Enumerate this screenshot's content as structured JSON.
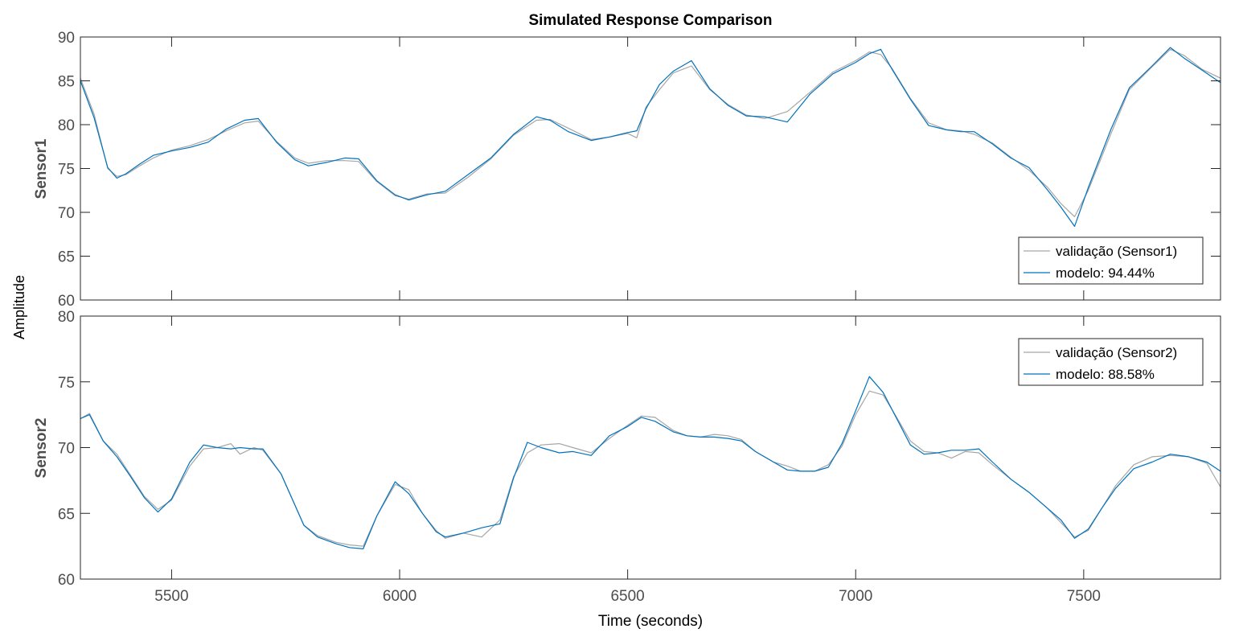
{
  "figure": {
    "title": "Simulated Response Comparison",
    "xlabel": "Time (seconds)",
    "shared_ylabel": "Amplitude"
  },
  "chart_data": [
    {
      "type": "line",
      "title": "Simulated Response Comparison",
      "xlabel": "Time (seconds)",
      "ylabel": "Sensor1",
      "xlim": [
        5300,
        7800
      ],
      "ylim": [
        60,
        90
      ],
      "xticks": [
        5500,
        6000,
        6500,
        7000,
        7500
      ],
      "yticks": [
        60,
        65,
        70,
        75,
        80,
        85,
        90
      ],
      "grid": false,
      "legend_position": "bottom-right",
      "series": [
        {
          "name": "validação (Sensor1)",
          "color": "#a6a6a6",
          "x": [
            5300,
            5330,
            5360,
            5380,
            5400,
            5430,
            5460,
            5500,
            5540,
            5580,
            5620,
            5660,
            5690,
            5730,
            5770,
            5800,
            5840,
            5880,
            5910,
            5950,
            5990,
            6020,
            6060,
            6100,
            6150,
            6200,
            6250,
            6300,
            6330,
            6370,
            6420,
            6460,
            6500,
            6520,
            6540,
            6570,
            6600,
            6640,
            6680,
            6720,
            6760,
            6800,
            6850,
            6900,
            6950,
            7000,
            7030,
            7055,
            7080,
            7120,
            7160,
            7200,
            7230,
            7260,
            7300,
            7340,
            7380,
            7420,
            7450,
            7480,
            7510,
            7560,
            7600,
            7650,
            7690,
            7720,
            7760,
            7800
          ],
          "y": [
            85.3,
            81.2,
            75.0,
            74.1,
            74.3,
            75.3,
            76.2,
            77.1,
            77.6,
            78.3,
            79.3,
            80.2,
            80.4,
            78.1,
            76.2,
            75.6,
            75.9,
            75.9,
            75.8,
            73.5,
            71.9,
            71.5,
            72.1,
            72.2,
            74.0,
            76.1,
            78.8,
            80.5,
            80.6,
            79.6,
            78.3,
            78.6,
            79.0,
            78.5,
            82.0,
            84.0,
            85.9,
            86.7,
            84.0,
            82.3,
            81.1,
            80.7,
            81.5,
            83.7,
            86.0,
            87.3,
            88.3,
            88.0,
            86.4,
            83.0,
            80.2,
            79.4,
            79.3,
            78.9,
            77.9,
            76.3,
            74.8,
            72.9,
            71.0,
            69.5,
            72.5,
            79.0,
            84.0,
            86.6,
            88.6,
            87.9,
            86.3,
            85.3
          ]
        },
        {
          "name": "modelo: 94.44%",
          "color": "#0072bd",
          "x": [
            5300,
            5330,
            5360,
            5380,
            5400,
            5430,
            5460,
            5500,
            5540,
            5580,
            5620,
            5660,
            5690,
            5730,
            5770,
            5800,
            5840,
            5880,
            5910,
            5950,
            5990,
            6020,
            6060,
            6100,
            6150,
            6200,
            6250,
            6300,
            6330,
            6370,
            6420,
            6460,
            6500,
            6520,
            6540,
            6570,
            6600,
            6640,
            6680,
            6720,
            6760,
            6800,
            6850,
            6900,
            6950,
            7000,
            7030,
            7055,
            7080,
            7120,
            7160,
            7200,
            7230,
            7260,
            7300,
            7340,
            7380,
            7420,
            7450,
            7480,
            7510,
            7560,
            7600,
            7650,
            7690,
            7720,
            7760,
            7800
          ],
          "y": [
            85.0,
            80.8,
            75.1,
            73.9,
            74.4,
            75.5,
            76.5,
            77.0,
            77.4,
            78.0,
            79.5,
            80.5,
            80.7,
            78.0,
            76.0,
            75.3,
            75.7,
            76.2,
            76.1,
            73.6,
            72.0,
            71.4,
            72.0,
            72.4,
            74.3,
            76.2,
            78.9,
            80.9,
            80.5,
            79.2,
            78.2,
            78.6,
            79.1,
            79.3,
            81.8,
            84.6,
            86.1,
            87.3,
            84.1,
            82.2,
            81.0,
            80.9,
            80.3,
            83.5,
            85.8,
            87.1,
            88.1,
            88.6,
            86.3,
            82.9,
            79.9,
            79.4,
            79.2,
            79.2,
            77.8,
            76.2,
            75.1,
            72.6,
            70.6,
            68.4,
            72.8,
            79.5,
            84.2,
            86.7,
            88.8,
            87.6,
            86.2,
            84.8
          ]
        }
      ]
    },
    {
      "type": "line",
      "xlabel": "Time (seconds)",
      "ylabel": "Sensor2",
      "xlim": [
        5300,
        7800
      ],
      "ylim": [
        60,
        80
      ],
      "xticks": [
        5500,
        6000,
        6500,
        7000,
        7500
      ],
      "yticks": [
        60,
        65,
        70,
        75,
        80
      ],
      "grid": false,
      "legend_position": "top-right",
      "series": [
        {
          "name": "validação (Sensor2)",
          "color": "#a6a6a6",
          "x": [
            5300,
            5320,
            5350,
            5380,
            5410,
            5440,
            5470,
            5500,
            5540,
            5570,
            5600,
            5630,
            5650,
            5680,
            5700,
            5740,
            5790,
            5820,
            5860,
            5890,
            5920,
            5950,
            5990,
            6020,
            6050,
            6080,
            6100,
            6140,
            6180,
            6220,
            6250,
            6280,
            6310,
            6350,
            6380,
            6420,
            6460,
            6500,
            6530,
            6560,
            6600,
            6630,
            6660,
            6690,
            6720,
            6750,
            6780,
            6820,
            6850,
            6880,
            6910,
            6940,
            6970,
            7000,
            7030,
            7060,
            7090,
            7120,
            7150,
            7180,
            7210,
            7240,
            7270,
            7300,
            7340,
            7380,
            7420,
            7450,
            7480,
            7510,
            7540,
            7570,
            7610,
            7650,
            7690,
            7730,
            7770,
            7800
          ],
          "y": [
            72.2,
            72.6,
            70.5,
            69.5,
            67.9,
            66.3,
            65.3,
            66.0,
            68.6,
            69.9,
            70.0,
            70.3,
            69.5,
            70.0,
            69.8,
            68.0,
            64.1,
            63.3,
            62.8,
            62.6,
            62.5,
            64.8,
            67.2,
            66.8,
            65.0,
            63.7,
            63.1,
            63.5,
            63.2,
            64.5,
            67.8,
            69.6,
            70.2,
            70.3,
            70.0,
            69.6,
            70.7,
            71.7,
            72.4,
            72.3,
            71.3,
            70.9,
            70.8,
            71.0,
            70.9,
            70.6,
            69.7,
            68.9,
            68.6,
            68.2,
            68.2,
            68.7,
            70.1,
            72.5,
            74.3,
            74.0,
            72.3,
            70.5,
            69.7,
            69.6,
            69.2,
            69.7,
            69.6,
            68.7,
            67.6,
            66.6,
            65.4,
            64.3,
            63.2,
            63.7,
            65.4,
            67.1,
            68.7,
            69.3,
            69.4,
            69.3,
            68.8,
            67.0
          ]
        },
        {
          "name": "modelo: 88.58%",
          "color": "#0072bd",
          "x": [
            5300,
            5320,
            5350,
            5380,
            5410,
            5440,
            5470,
            5500,
            5540,
            5570,
            5600,
            5630,
            5650,
            5680,
            5700,
            5740,
            5790,
            5820,
            5860,
            5890,
            5920,
            5950,
            5990,
            6020,
            6050,
            6080,
            6100,
            6140,
            6180,
            6220,
            6250,
            6280,
            6310,
            6350,
            6380,
            6420,
            6460,
            6500,
            6530,
            6560,
            6600,
            6630,
            6660,
            6690,
            6720,
            6750,
            6780,
            6820,
            6850,
            6880,
            6910,
            6940,
            6970,
            7000,
            7030,
            7060,
            7090,
            7120,
            7150,
            7180,
            7210,
            7240,
            7270,
            7300,
            7340,
            7380,
            7420,
            7450,
            7480,
            7510,
            7540,
            7570,
            7610,
            7650,
            7690,
            7730,
            7770,
            7800
          ],
          "y": [
            72.2,
            72.5,
            70.5,
            69.3,
            67.8,
            66.2,
            65.1,
            66.1,
            68.9,
            70.2,
            70.0,
            69.9,
            70.0,
            69.9,
            69.9,
            68.0,
            64.1,
            63.2,
            62.7,
            62.4,
            62.3,
            64.8,
            67.4,
            66.5,
            65.0,
            63.6,
            63.2,
            63.5,
            63.9,
            64.2,
            67.7,
            70.4,
            70.0,
            69.6,
            69.7,
            69.4,
            70.9,
            71.6,
            72.3,
            72.0,
            71.2,
            70.9,
            70.8,
            70.8,
            70.7,
            70.5,
            69.7,
            68.9,
            68.3,
            68.2,
            68.2,
            68.5,
            70.3,
            72.8,
            75.4,
            74.2,
            72.2,
            70.2,
            69.5,
            69.6,
            69.8,
            69.8,
            69.9,
            68.9,
            67.6,
            66.6,
            65.4,
            64.5,
            63.1,
            63.8,
            65.4,
            66.9,
            68.4,
            68.9,
            69.5,
            69.3,
            68.9,
            68.2
          ]
        }
      ]
    }
  ]
}
